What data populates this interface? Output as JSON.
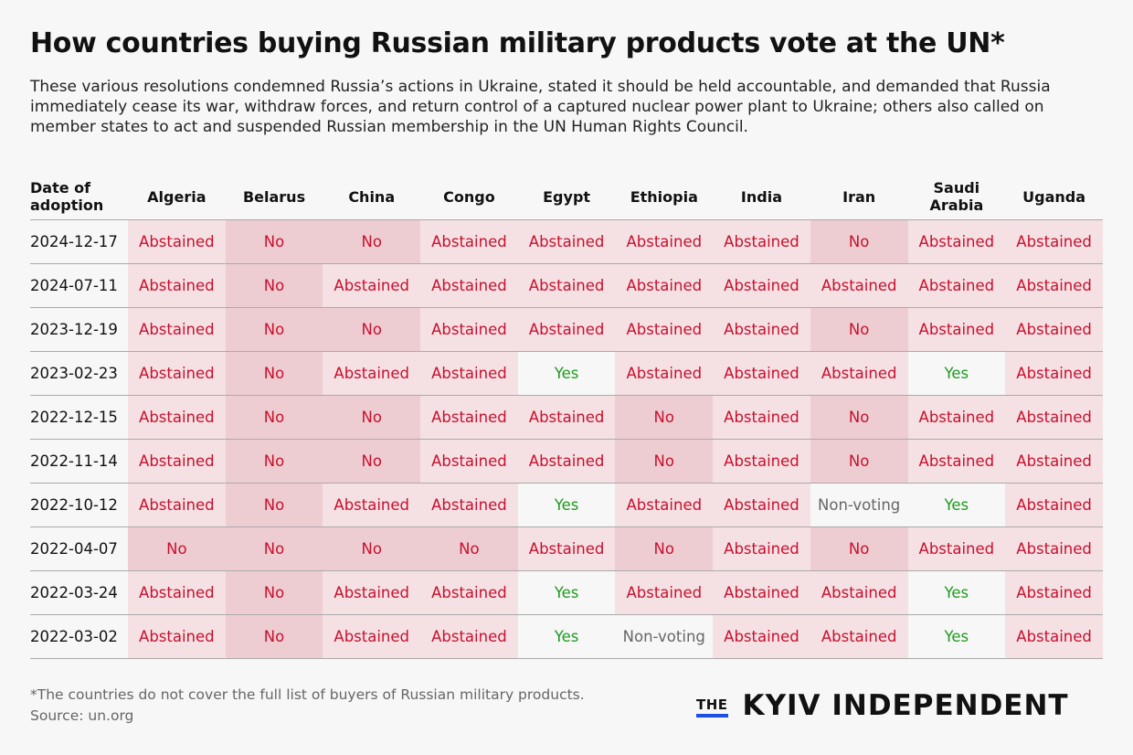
{
  "title": "How countries buying Russian military products vote at the UN*",
  "subtitle": "These various resolutions condemned Russia’s actions in Ukraine, stated it should be held accountable, and demanded that Russia immediately cease its war, withdraw forces, and return control of a captured nuclear power plant to Ukraine; others also called on member states to act and suspended Russian membership in the UN Human Rights Council.",
  "colors": {
    "abstained_bg": "#f5e1e4",
    "no_bg": "#eecdd2",
    "vote_text_red": "#c8102e",
    "yes_text": "#1f9a1f",
    "nonvoting_text": "#666666",
    "logo_underline": "#1f4fe0"
  },
  "chart_data": {
    "type": "table",
    "columns": [
      "Date of adoption",
      "Algeria",
      "Belarus",
      "China",
      "Congo",
      "Egypt",
      "Ethiopia",
      "India",
      "Iran",
      "Saudi Arabia",
      "Uganda"
    ],
    "rows": [
      [
        "2024-12-17",
        "Abstained",
        "No",
        "No",
        "Abstained",
        "Abstained",
        "Abstained",
        "Abstained",
        "No",
        "Abstained",
        "Abstained"
      ],
      [
        "2024-07-11",
        "Abstained",
        "No",
        "Abstained",
        "Abstained",
        "Abstained",
        "Abstained",
        "Abstained",
        "Abstained",
        "Abstained",
        "Abstained"
      ],
      [
        "2023-12-19",
        "Abstained",
        "No",
        "No",
        "Abstained",
        "Abstained",
        "Abstained",
        "Abstained",
        "No",
        "Abstained",
        "Abstained"
      ],
      [
        "2023-02-23",
        "Abstained",
        "No",
        "Abstained",
        "Abstained",
        "Yes",
        "Abstained",
        "Abstained",
        "Abstained",
        "Yes",
        "Abstained"
      ],
      [
        "2022-12-15",
        "Abstained",
        "No",
        "No",
        "Abstained",
        "Abstained",
        "No",
        "Abstained",
        "No",
        "Abstained",
        "Abstained"
      ],
      [
        "2022-11-14",
        "Abstained",
        "No",
        "No",
        "Abstained",
        "Abstained",
        "No",
        "Abstained",
        "No",
        "Abstained",
        "Abstained"
      ],
      [
        "2022-10-12",
        "Abstained",
        "No",
        "Abstained",
        "Abstained",
        "Yes",
        "Abstained",
        "Abstained",
        "Non-voting",
        "Yes",
        "Abstained"
      ],
      [
        "2022-04-07",
        "No",
        "No",
        "No",
        "No",
        "Abstained",
        "No",
        "Abstained",
        "No",
        "Abstained",
        "Abstained"
      ],
      [
        "2022-03-24",
        "Abstained",
        "No",
        "Abstained",
        "Abstained",
        "Yes",
        "Abstained",
        "Abstained",
        "Abstained",
        "Yes",
        "Abstained"
      ],
      [
        "2022-03-02",
        "Abstained",
        "No",
        "Abstained",
        "Abstained",
        "Yes",
        "Non-voting",
        "Abstained",
        "Abstained",
        "Yes",
        "Abstained"
      ]
    ]
  },
  "footnote": "*The countries do not cover the full list of buyers of Russian military products.",
  "source": "Source: un.org",
  "logo": {
    "the": "THE",
    "name": "KYIV INDEPENDENT"
  }
}
